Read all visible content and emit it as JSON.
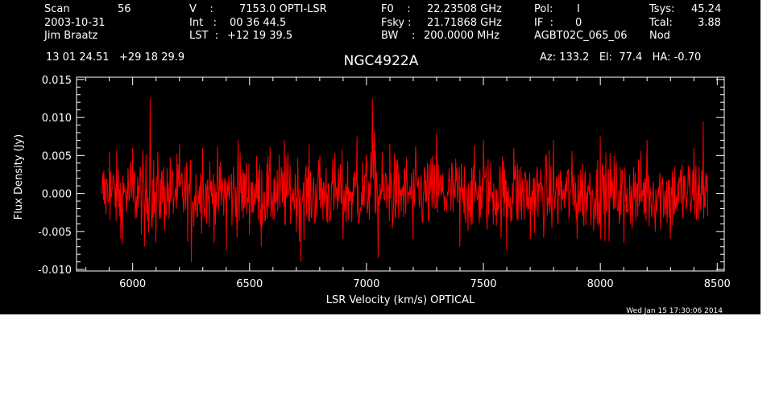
{
  "header": {
    "col1": [
      "Scan",
      "2003-10-31",
      "Jim Braatz"
    ],
    "col1_val": [
      "56"
    ],
    "col2": [
      "V    :",
      "Int   :",
      "LST  :"
    ],
    "col2_val": [
      "7153.0 OPTI-LSR",
      "00 36 44.5",
      "+12 19 39.5"
    ],
    "col3": [
      "F0    :",
      "Fsky :",
      "BW    :"
    ],
    "col3_val": [
      "22.23508 GHz",
      "21.71868 GHz",
      "200.0000 MHz"
    ],
    "col4": [
      "Pol:",
      "IF  :",
      "AGBT02C_065_06"
    ],
    "col4_val": [
      "I",
      "0"
    ],
    "col5": [
      "Tsys:",
      "Tcal:",
      "Nod"
    ],
    "col5_val": [
      "45.24",
      "3.88"
    ],
    "coords": "13 01 24.51   +29 18 29.9",
    "source": "NGC4922A",
    "azel": "Az: 133.2   El:  77.4   HA: -0.70",
    "timestamp": "Wed Jan 15 17:30:06 2014"
  },
  "colors": {
    "background": "#000000",
    "trace": "#ff0000",
    "axes": "#ffffff"
  },
  "chart_data": {
    "type": "line",
    "title": "NGC4922A",
    "xlabel": "LSR Velocity (km/s) OPTICAL",
    "ylabel": "Flux Density (Jy)",
    "xlim": [
      5760,
      8530
    ],
    "ylim": [
      -0.0102,
      0.0153
    ],
    "xticks": [
      6000,
      6500,
      7000,
      7500,
      8000,
      8500
    ],
    "xtick_labels": [
      "6000",
      "6500",
      "7000",
      "7500",
      "8000",
      "8500"
    ],
    "yticks": [
      -0.01,
      -0.005,
      0.0,
      0.005,
      0.01,
      0.015
    ],
    "ytick_labels": [
      "-0.010",
      "-0.005",
      "0.000",
      "0.005",
      "0.010",
      "0.015"
    ],
    "grid": false,
    "series": [
      {
        "x_range": [
          5868,
          8460
        ],
        "sampled_points": [
          [
            5868,
            0.0
          ],
          [
            5900,
            0.0055
          ],
          [
            5950,
            -0.006
          ],
          [
            6000,
            0.006
          ],
          [
            6050,
            -0.007
          ],
          [
            6075,
            0.0125
          ],
          [
            6100,
            -0.0065
          ],
          [
            6200,
            0.0065
          ],
          [
            6250,
            -0.009
          ],
          [
            6300,
            0.006
          ],
          [
            6400,
            -0.0075
          ],
          [
            6450,
            0.007
          ],
          [
            6550,
            -0.007
          ],
          [
            6650,
            0.007
          ],
          [
            6720,
            -0.009
          ],
          [
            6800,
            0.005
          ],
          [
            6900,
            -0.006
          ],
          [
            6960,
            0.0075
          ],
          [
            7000,
            0.004
          ],
          [
            7025,
            0.0125
          ],
          [
            7050,
            -0.0085
          ],
          [
            7100,
            0.0065
          ],
          [
            7200,
            -0.006
          ],
          [
            7300,
            0.008
          ],
          [
            7400,
            -0.007
          ],
          [
            7500,
            0.007
          ],
          [
            7600,
            -0.0075
          ],
          [
            7630,
            0.006
          ],
          [
            7700,
            -0.006
          ],
          [
            7800,
            0.007
          ],
          [
            7900,
            -0.006
          ],
          [
            8000,
            0.0075
          ],
          [
            8100,
            -0.0065
          ],
          [
            8200,
            0.007
          ],
          [
            8300,
            -0.006
          ],
          [
            8400,
            0.006
          ],
          [
            8440,
            0.0095
          ],
          [
            8460,
            -0.003
          ]
        ],
        "noise_rms": 0.0025
      }
    ]
  }
}
